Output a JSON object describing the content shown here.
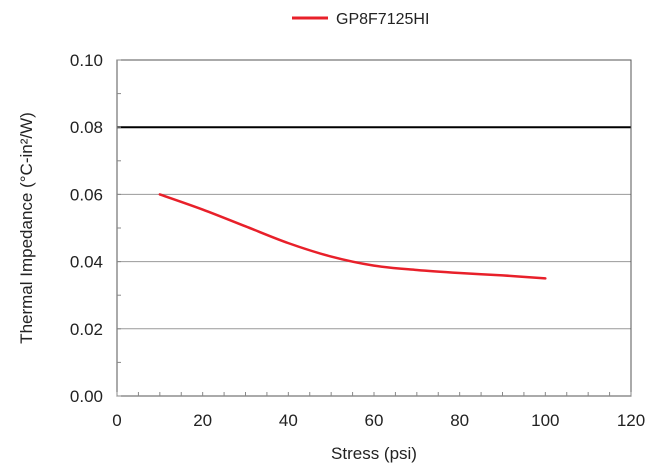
{
  "chart_data": {
    "type": "line",
    "xlabel": "Stress (psi)",
    "ylabel": "Thermal Impedance (°C-in²/W)",
    "xlim": [
      0,
      120
    ],
    "ylim": [
      0.0,
      0.1
    ],
    "x_ticks": [
      "0",
      "20",
      "40",
      "60",
      "80",
      "100",
      "120"
    ],
    "y_ticks": [
      "0.00",
      "0.02",
      "0.04",
      "0.06",
      "0.08",
      "0.10"
    ],
    "grid": true,
    "legend_position": "top-center",
    "reference_line": {
      "y": 0.08,
      "color": "#000000"
    },
    "series": [
      {
        "name": "GP8F7125HI",
        "color": "#e8202a",
        "x": [
          10,
          20,
          30,
          40,
          50,
          60,
          70,
          80,
          90,
          100
        ],
        "y": [
          0.06,
          0.0555,
          0.0505,
          0.0455,
          0.0415,
          0.0388,
          0.0375,
          0.0366,
          0.0359,
          0.035
        ]
      }
    ]
  }
}
